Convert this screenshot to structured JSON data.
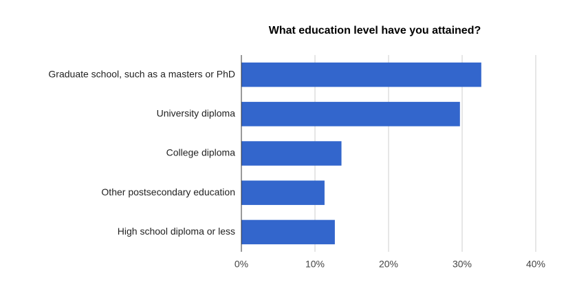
{
  "chart_data": {
    "type": "hbar",
    "title": "What education level have you attained?",
    "categories": [
      "Graduate school, such as a masters or PhD",
      "University diploma",
      "College diploma",
      "Other postsecondary education",
      "High school diploma or less"
    ],
    "values": [
      32.6,
      29.7,
      13.6,
      11.3,
      12.7
    ],
    "color": "#3366cc",
    "xlim": [
      0,
      40
    ],
    "xticks": [
      {
        "value": 0,
        "label": "0%"
      },
      {
        "value": 10,
        "label": "10%"
      },
      {
        "value": 20,
        "label": "20%"
      },
      {
        "value": 30,
        "label": "30%"
      },
      {
        "value": 40,
        "label": "40%"
      }
    ],
    "grid": true
  }
}
